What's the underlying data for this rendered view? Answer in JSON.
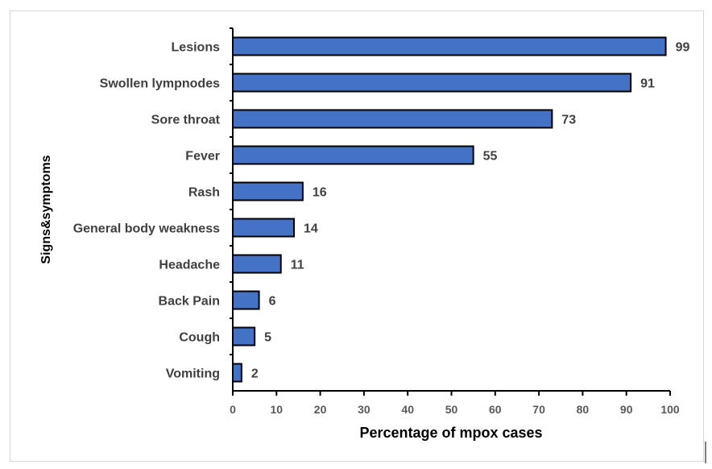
{
  "chart_data": {
    "type": "bar",
    "orientation": "horizontal",
    "categories": [
      "Lesions",
      "Swollen lympnodes",
      "Sore throat",
      "Fever",
      "Rash",
      "General body weakness",
      "Headache",
      "Back Pain",
      "Cough",
      "Vomiting"
    ],
    "values": [
      99,
      91,
      73,
      55,
      16,
      14,
      11,
      6,
      5,
      2
    ],
    "xlabel": "Percentage of mpox cases",
    "ylabel": "Signs&symptoms",
    "xlim": [
      0,
      100
    ],
    "xticks": [
      "0",
      "10",
      "20",
      "30",
      "40",
      "50",
      "60",
      "70",
      "80",
      "90",
      "100"
    ],
    "grid": false,
    "bar_color": "#4472C4"
  }
}
